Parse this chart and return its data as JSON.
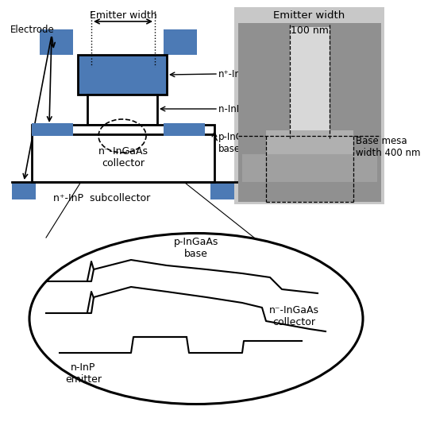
{
  "bg_color": "#ffffff",
  "blue_color": "#4c7ab5",
  "black": "#000000",
  "labels": {
    "emitter_width": "Emitter width",
    "electrode": "Electrode",
    "n_plus_ingaas": "n⁺-InGaAs",
    "n_inp_emitter": "n-InP emitter",
    "p_ingaas_base": "p-InGaAs\nbase",
    "n_minus_ingaas": "n⁻-InGaAs\ncollector",
    "n_plus_inp_sub": "n⁺-InP  subcollector",
    "emitter_width2": "Emitter width",
    "100nm": "100 nm",
    "base_mesa": "Base mesa\nwidth 400 nm",
    "p_ingaas_base2": "p-InGaAs\nbase",
    "n_inp_emitter2": "n-InP\nemitter",
    "n_minus_ingaas2": "n⁻-InGaAs\ncollector"
  }
}
